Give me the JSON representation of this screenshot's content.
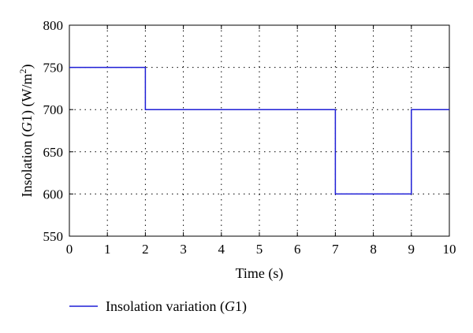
{
  "chart_data": {
    "type": "line",
    "xlabel": "Time (s)",
    "ylabel": {
      "before": "Insolation (",
      "italic": "G",
      "after": "1) (W/m",
      "sup": "2",
      "close": ")"
    },
    "xlim": [
      0,
      10
    ],
    "ylim": [
      550,
      800
    ],
    "x_ticks": [
      0,
      1,
      2,
      3,
      4,
      5,
      6,
      7,
      8,
      9,
      10
    ],
    "y_ticks": [
      550,
      600,
      650,
      700,
      750,
      800
    ],
    "grid": true,
    "step": true,
    "series": [
      {
        "name": {
          "before": "Insolation variation (",
          "italic": "G",
          "after": "1)"
        },
        "color": "#1f1fd6",
        "x": [
          0,
          2,
          2,
          7,
          7,
          9,
          9,
          10
        ],
        "y": [
          750,
          750,
          700,
          700,
          600,
          600,
          700,
          700
        ]
      }
    ],
    "legend": "bottom-left"
  }
}
